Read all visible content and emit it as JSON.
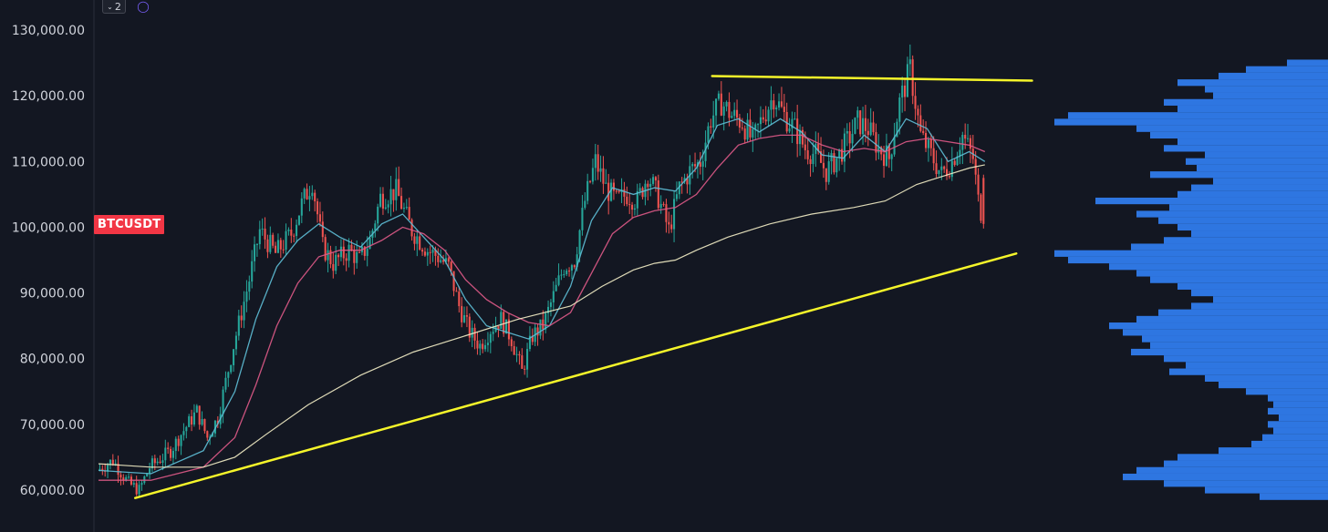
{
  "toolbar": {
    "collapse_icon": "chevron-down-icon",
    "collapse_count": "2",
    "sync_icon": "sync-icon"
  },
  "symbol": "BTCUSDT",
  "colors": {
    "background": "#131722",
    "up": "#26a69a",
    "down": "#ef5350",
    "ma_fast": "#5fc0d8",
    "ma_slow": "#e05a88",
    "ma_long": "#f5f0c8",
    "trendline": "#f5f52a",
    "volume_profile": "#2f7bec",
    "axis_text": "#d1d4dc",
    "symbol_badge": "#f23645"
  },
  "chart_data": {
    "type": "candlestick",
    "title": "",
    "xlabel": "",
    "ylabel": "",
    "ylim": [
      57000,
      133000
    ],
    "yticks": [
      "130,000.00",
      "120,000.00",
      "110,000.00",
      "100,000.00",
      "90,000.00",
      "80,000.00",
      "70,000.00",
      "60,000.00"
    ],
    "grid": false,
    "price_path": [
      [
        0,
        63000
      ],
      [
        3,
        64500
      ],
      [
        6,
        61000
      ],
      [
        8,
        60000
      ],
      [
        10,
        63500
      ],
      [
        14,
        66000
      ],
      [
        16,
        68500
      ],
      [
        19,
        72000
      ],
      [
        21,
        68000
      ],
      [
        23,
        71000
      ],
      [
        26,
        82000
      ],
      [
        29,
        92000
      ],
      [
        31,
        99500
      ],
      [
        34,
        96000
      ],
      [
        37,
        99000
      ],
      [
        39,
        103500
      ],
      [
        41,
        107000
      ],
      [
        43,
        97000
      ],
      [
        45,
        94500
      ],
      [
        48,
        96500
      ],
      [
        50,
        95000
      ],
      [
        52,
        98000
      ],
      [
        54,
        104500
      ],
      [
        57,
        105500
      ],
      [
        60,
        99500
      ],
      [
        63,
        96500
      ],
      [
        65,
        95500
      ],
      [
        67,
        94000
      ],
      [
        69,
        88000
      ],
      [
        71,
        84000
      ],
      [
        73,
        82000
      ],
      [
        75,
        84500
      ],
      [
        77,
        86000
      ],
      [
        79,
        83000
      ],
      [
        81,
        78000
      ],
      [
        83,
        83500
      ],
      [
        85,
        85000
      ],
      [
        87,
        89500
      ],
      [
        89,
        94000
      ],
      [
        91,
        95000
      ],
      [
        93,
        104000
      ],
      [
        95,
        110000
      ],
      [
        97,
        106000
      ],
      [
        99,
        104000
      ],
      [
        101,
        105000
      ],
      [
        103,
        104000
      ],
      [
        105,
        108000
      ],
      [
        107,
        104500
      ],
      [
        109,
        99500
      ],
      [
        111,
        106000
      ],
      [
        113,
        108500
      ],
      [
        115,
        110000
      ],
      [
        117,
        116500
      ],
      [
        119,
        119000
      ],
      [
        121,
        117000
      ],
      [
        123,
        116000
      ],
      [
        125,
        113000
      ],
      [
        127,
        117000
      ],
      [
        129,
        120000
      ],
      [
        131,
        117000
      ],
      [
        133,
        115000
      ],
      [
        135,
        112000
      ],
      [
        137,
        111000
      ],
      [
        139,
        108500
      ],
      [
        141,
        110500
      ],
      [
        143,
        113000
      ],
      [
        145,
        116000
      ],
      [
        147,
        115000
      ],
      [
        149,
        112000
      ],
      [
        151,
        110500
      ],
      [
        153,
        119000
      ],
      [
        155,
        124000
      ],
      [
        157,
        114000
      ],
      [
        159,
        111000
      ],
      [
        161,
        108000
      ],
      [
        163,
        110000
      ],
      [
        165,
        114000
      ],
      [
        167,
        110500
      ],
      [
        168,
        104000
      ],
      [
        169,
        101000
      ]
    ],
    "moving_averages": [
      {
        "id": "ma_fast",
        "points": [
          [
            0,
            63000
          ],
          [
            10,
            62500
          ],
          [
            20,
            66000
          ],
          [
            26,
            75000
          ],
          [
            30,
            86000
          ],
          [
            34,
            94000
          ],
          [
            38,
            98000
          ],
          [
            42,
            100500
          ],
          [
            46,
            98500
          ],
          [
            50,
            97000
          ],
          [
            54,
            100500
          ],
          [
            58,
            102000
          ],
          [
            62,
            98500
          ],
          [
            66,
            95000
          ],
          [
            70,
            89000
          ],
          [
            74,
            85000
          ],
          [
            78,
            84000
          ],
          [
            82,
            83000
          ],
          [
            86,
            85000
          ],
          [
            90,
            91000
          ],
          [
            94,
            101000
          ],
          [
            98,
            106000
          ],
          [
            102,
            105000
          ],
          [
            106,
            106000
          ],
          [
            110,
            105500
          ],
          [
            114,
            109000
          ],
          [
            118,
            115500
          ],
          [
            122,
            116500
          ],
          [
            126,
            114500
          ],
          [
            130,
            116500
          ],
          [
            134,
            114500
          ],
          [
            138,
            111000
          ],
          [
            142,
            110500
          ],
          [
            146,
            114000
          ],
          [
            150,
            111500
          ],
          [
            154,
            116500
          ],
          [
            158,
            115000
          ],
          [
            162,
            110000
          ],
          [
            166,
            111500
          ],
          [
            169,
            110000
          ]
        ]
      },
      {
        "id": "ma_slow",
        "points": [
          [
            0,
            61500
          ],
          [
            10,
            61500
          ],
          [
            20,
            63500
          ],
          [
            26,
            68000
          ],
          [
            30,
            76000
          ],
          [
            34,
            85000
          ],
          [
            38,
            91500
          ],
          [
            42,
            95500
          ],
          [
            46,
            96500
          ],
          [
            50,
            96500
          ],
          [
            54,
            98000
          ],
          [
            58,
            100000
          ],
          [
            62,
            99000
          ],
          [
            66,
            96500
          ],
          [
            70,
            92000
          ],
          [
            74,
            89000
          ],
          [
            78,
            87000
          ],
          [
            82,
            85500
          ],
          [
            86,
            85000
          ],
          [
            90,
            87000
          ],
          [
            94,
            93000
          ],
          [
            98,
            99000
          ],
          [
            102,
            101500
          ],
          [
            106,
            102500
          ],
          [
            110,
            103000
          ],
          [
            114,
            105000
          ],
          [
            118,
            109000
          ],
          [
            122,
            112500
          ],
          [
            126,
            113500
          ],
          [
            130,
            114000
          ],
          [
            134,
            114000
          ],
          [
            138,
            112500
          ],
          [
            142,
            111500
          ],
          [
            146,
            112000
          ],
          [
            150,
            111500
          ],
          [
            154,
            113000
          ],
          [
            158,
            113500
          ],
          [
            162,
            113000
          ],
          [
            166,
            112500
          ],
          [
            169,
            111500
          ]
        ]
      },
      {
        "id": "ma_long",
        "points": [
          [
            0,
            64000
          ],
          [
            10,
            63500
          ],
          [
            20,
            63500
          ],
          [
            26,
            65000
          ],
          [
            32,
            68500
          ],
          [
            40,
            73000
          ],
          [
            50,
            77500
          ],
          [
            60,
            81000
          ],
          [
            70,
            83500
          ],
          [
            80,
            86000
          ],
          [
            90,
            88000
          ],
          [
            96,
            91000
          ],
          [
            102,
            93500
          ],
          [
            106,
            94500
          ],
          [
            110,
            95000
          ],
          [
            114,
            96500
          ],
          [
            120,
            98500
          ],
          [
            128,
            100500
          ],
          [
            136,
            102000
          ],
          [
            144,
            103000
          ],
          [
            150,
            104000
          ],
          [
            156,
            106500
          ],
          [
            162,
            108000
          ],
          [
            166,
            109000
          ],
          [
            169,
            109500
          ]
        ]
      }
    ],
    "trendlines": [
      {
        "id": "resistance",
        "from": [
          117,
          123000
        ],
        "to": [
          178,
          122300
        ]
      },
      {
        "id": "support",
        "from": [
          7,
          58800
        ],
        "to": [
          175,
          96000
        ]
      }
    ],
    "volume_profile": {
      "bins": [
        [
          125,
          0.15
        ],
        [
          124,
          0.3
        ],
        [
          123,
          0.4
        ],
        [
          122,
          0.55
        ],
        [
          121,
          0.45
        ],
        [
          120,
          0.42
        ],
        [
          119,
          0.6
        ],
        [
          118,
          0.55
        ],
        [
          117,
          0.95
        ],
        [
          116,
          1.0
        ],
        [
          115,
          0.7
        ],
        [
          114,
          0.65
        ],
        [
          113,
          0.55
        ],
        [
          112,
          0.6
        ],
        [
          111,
          0.45
        ],
        [
          110,
          0.52
        ],
        [
          109,
          0.48
        ],
        [
          108,
          0.65
        ],
        [
          107,
          0.42
        ],
        [
          106,
          0.5
        ],
        [
          105,
          0.55
        ],
        [
          104,
          0.85
        ],
        [
          103,
          0.58
        ],
        [
          102,
          0.7
        ],
        [
          101,
          0.62
        ],
        [
          100,
          0.55
        ],
        [
          99,
          0.5
        ],
        [
          98,
          0.6
        ],
        [
          97,
          0.72
        ],
        [
          96,
          1.0
        ],
        [
          95,
          0.95
        ],
        [
          94,
          0.8
        ],
        [
          93,
          0.7
        ],
        [
          92,
          0.65
        ],
        [
          91,
          0.55
        ],
        [
          90,
          0.5
        ],
        [
          89,
          0.42
        ],
        [
          88,
          0.5
        ],
        [
          87,
          0.62
        ],
        [
          86,
          0.7
        ],
        [
          85,
          0.8
        ],
        [
          84,
          0.75
        ],
        [
          83,
          0.68
        ],
        [
          82,
          0.65
        ],
        [
          81,
          0.72
        ],
        [
          80,
          0.6
        ],
        [
          79,
          0.52
        ],
        [
          78,
          0.58
        ],
        [
          77,
          0.45
        ],
        [
          76,
          0.4
        ],
        [
          75,
          0.3
        ],
        [
          74,
          0.22
        ],
        [
          73,
          0.2
        ],
        [
          72,
          0.22
        ],
        [
          71,
          0.18
        ],
        [
          70,
          0.22
        ],
        [
          69,
          0.2
        ],
        [
          68,
          0.24
        ],
        [
          67,
          0.28
        ],
        [
          66,
          0.4
        ],
        [
          65,
          0.55
        ],
        [
          64,
          0.6
        ],
        [
          63,
          0.7
        ],
        [
          62,
          0.75
        ],
        [
          61,
          0.6
        ],
        [
          60,
          0.45
        ],
        [
          59,
          0.25
        ]
      ],
      "unit": "thousand USD price levels, relative volume"
    }
  }
}
